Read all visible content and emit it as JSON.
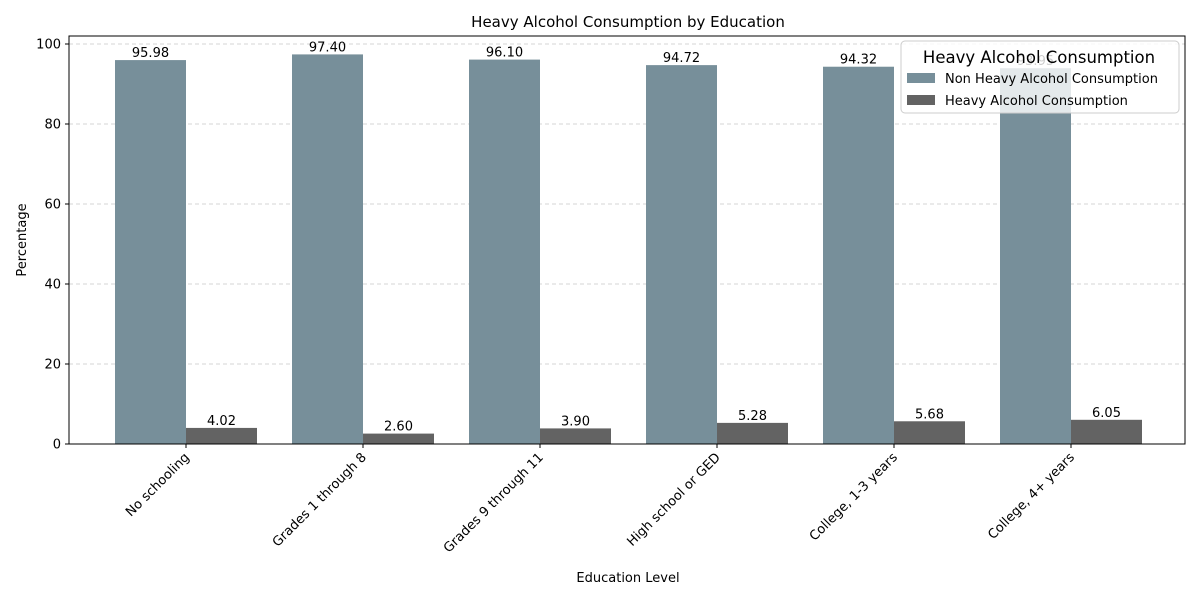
{
  "chart_data": {
    "type": "bar",
    "title": "Heavy Alcohol Consumption by Education",
    "xlabel": "Education Level",
    "ylabel": "Percentage",
    "categories": [
      "No schooling",
      "Grades 1 through 8",
      "Grades 9 through 11",
      "High school or GED",
      "College, 1-3 years",
      "College, 4+ years"
    ],
    "series": [
      {
        "name": "Non Heavy Alcohol Consumption",
        "color": "#778f9a",
        "values": [
          95.98,
          97.4,
          96.1,
          94.72,
          94.32,
          93.95
        ]
      },
      {
        "name": "Heavy Alcohol Consumption",
        "color": "#636363",
        "values": [
          4.02,
          2.6,
          3.9,
          5.28,
          5.68,
          6.05
        ]
      }
    ],
    "data_labels": [
      [
        "95.98",
        "97.40",
        "96.10",
        "94.72",
        "94.32",
        "93.95"
      ],
      [
        "4.02",
        "2.60",
        "3.90",
        "5.28",
        "5.68",
        "6.05"
      ]
    ],
    "ylim": [
      0,
      102
    ],
    "yticks": [
      0,
      20,
      40,
      60,
      80,
      100
    ],
    "grid": true,
    "grid_axis": "y",
    "legend": {
      "title": "Heavy Alcohol Consumption",
      "placement": "top-right"
    }
  }
}
